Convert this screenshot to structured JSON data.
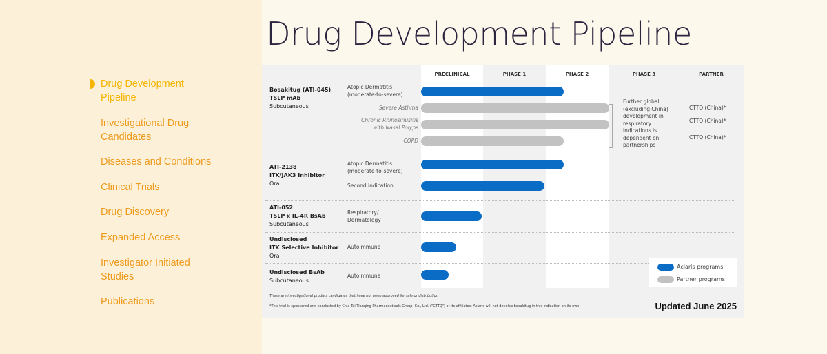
{
  "sidebar": {
    "items": [
      {
        "label": "Drug Development Pipeline",
        "active": true
      },
      {
        "label": "Investigational Drug Candidates"
      },
      {
        "label": "Diseases and Conditions"
      },
      {
        "label": "Clinical Trials"
      },
      {
        "label": "Drug Discovery"
      },
      {
        "label": "Expanded Access"
      },
      {
        "label": "Investigator Initiated Studies"
      },
      {
        "label": "Publications"
      }
    ]
  },
  "page": {
    "title": "Drug Development Pipeline"
  },
  "colors": {
    "aclaris": "#0a6cc4",
    "partner": "#c2c2c2",
    "nav": "#ee9a1c",
    "nav_active": "#f4b400"
  },
  "chart_data": {
    "type": "bar",
    "stages": [
      "PRECLINICAL",
      "PHASE 1",
      "PHASE 2",
      "PHASE 3",
      "PARTNER"
    ],
    "progress_unit": "stages completed (0=start of Preclinical, 3=end of Phase 2)",
    "programs": [
      {
        "name": "Bosakitug (ATI-045)",
        "target": "TSLP mAb",
        "route": "Subcutaneous",
        "indications": [
          {
            "label": "Atopic Dermatitis (moderate-to-severe)",
            "type": "aclaris",
            "progress": 2.28
          },
          {
            "label": "Severe Asthma",
            "type": "partner",
            "progress": 3.0,
            "partner": "CTTQ (China)*"
          },
          {
            "label": "Chronic Rhinosinusitis with Nasal Polyps",
            "type": "partner",
            "progress": 3.0,
            "partner": "CTTQ (China)*"
          },
          {
            "label": "COPD",
            "type": "partner",
            "progress": 2.28,
            "partner": "CTTQ (China)*"
          }
        ]
      },
      {
        "name": "ATI-2138",
        "target": "ITK/JAK3 Inhibitor",
        "route": "Oral",
        "indications": [
          {
            "label": "Atopic Dermatitis (moderate-to-severe)",
            "type": "aclaris",
            "progress": 2.28
          },
          {
            "label": "Second indication",
            "type": "aclaris",
            "progress": 1.97
          }
        ]
      },
      {
        "name": "ATI-052",
        "target": "TSLP x IL-4R BsAb",
        "route": "Subcutaneous",
        "indications": [
          {
            "label": "Respiratory/ Dermatology",
            "type": "aclaris",
            "progress": 0.97
          }
        ]
      },
      {
        "name": "Undisclosed",
        "target": "ITK Selective Inhibitor",
        "route": "Oral",
        "indications": [
          {
            "label": "Autoimmune",
            "type": "aclaris",
            "progress": 0.56
          }
        ]
      },
      {
        "name": "Undisclosed BsAb",
        "target": "",
        "route": "Subcutaneous",
        "indications": [
          {
            "label": "Autoimmune",
            "type": "aclaris",
            "progress": 0.44
          }
        ]
      }
    ],
    "phase3_note": "Further global (excluding China) development in respiratory indications is dependent on partnerships",
    "legend": [
      "Aclaris programs",
      "Partner programs"
    ],
    "footnote1": "These are investigational product candidates that have not been approved for sale or distribution",
    "footnote2": "*This trial is sponsored and conducted by Chia Tai Tianqing Pharmaceuticals Group, Co., Ltd. (\"CTTQ\") or its affiliates; Aclaris will not develop bosakitug in this indication on its own.",
    "updated": "Updated June 2025"
  }
}
